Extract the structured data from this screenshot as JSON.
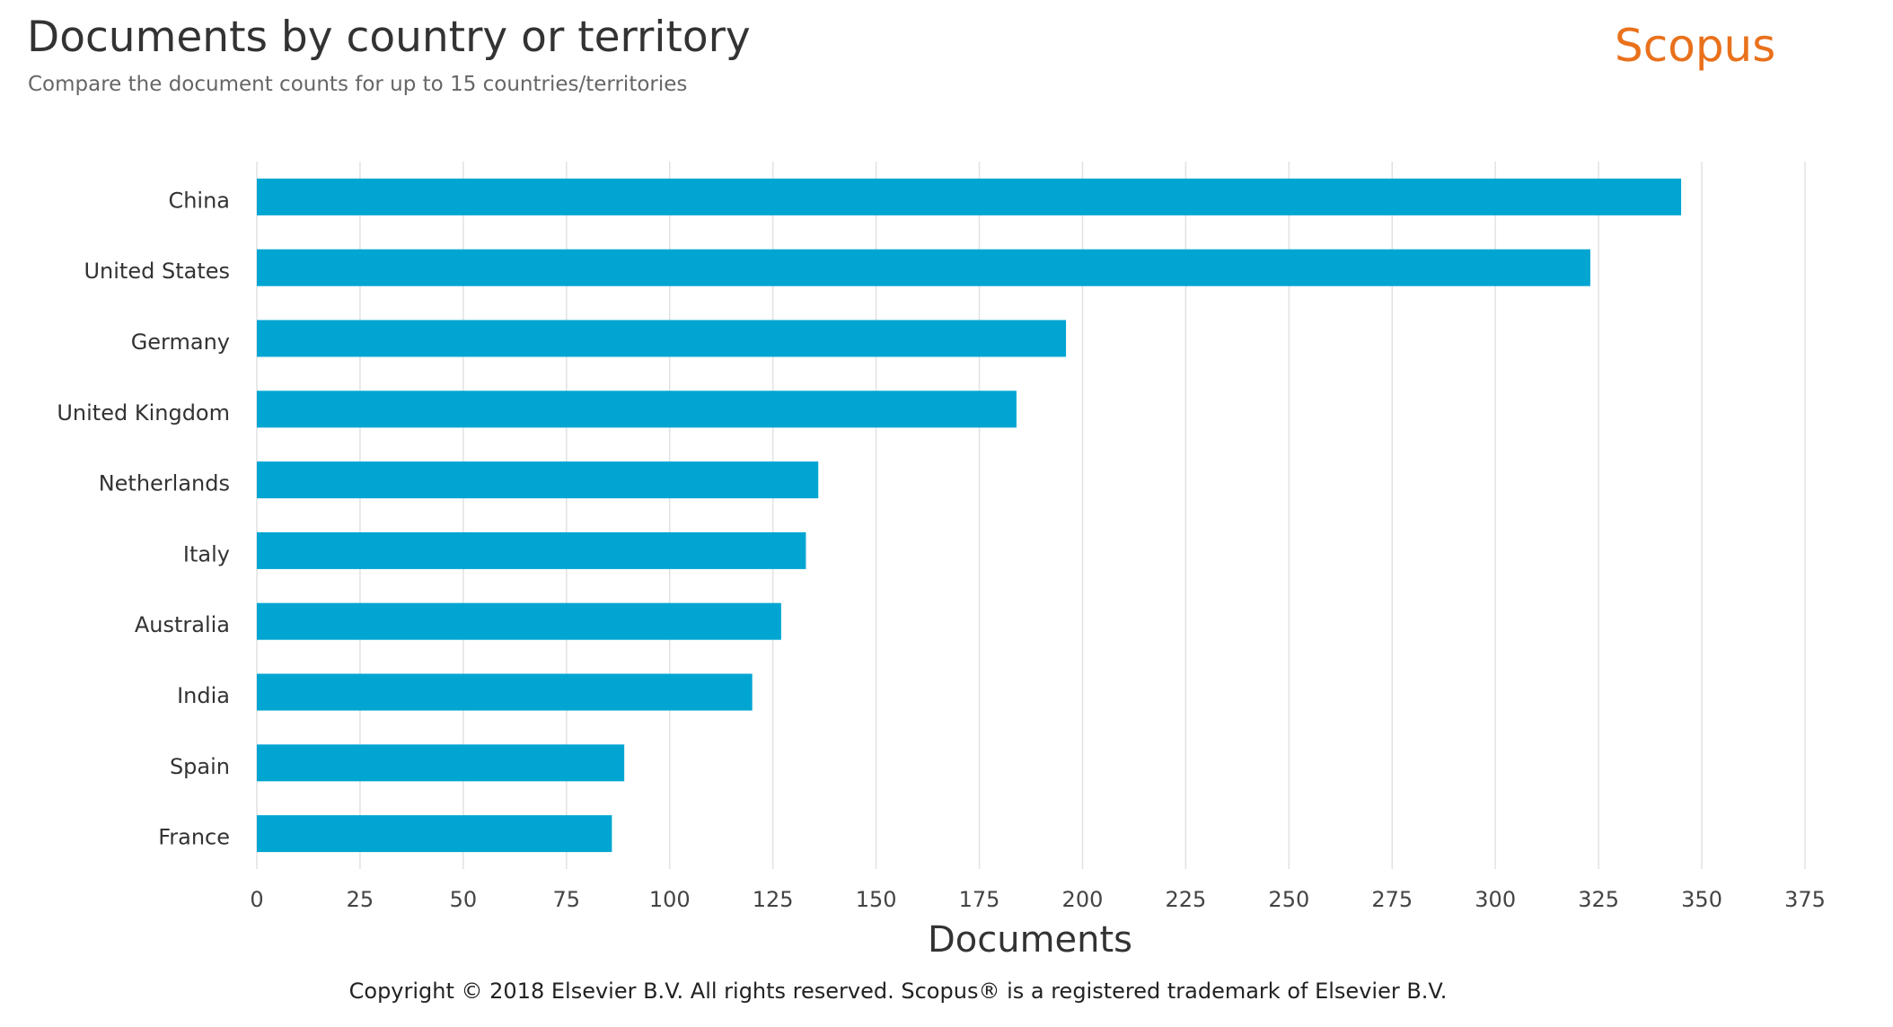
{
  "header": {
    "title": "Documents by country or territory",
    "subtitle": "Compare the document counts for up to 15 countries/territories",
    "logo": "Scopus"
  },
  "footer": {
    "copyright": "Copyright © 2018 Elsevier B.V. All rights reserved. Scopus® is a registered trademark of Elsevier B.V."
  },
  "colors": {
    "bar": "#00a5d2",
    "grid": "#e2e2e2"
  },
  "chart_data": {
    "type": "bar",
    "orientation": "horizontal",
    "title": "Documents by country or territory",
    "xlabel": "Documents",
    "ylabel": "",
    "categories": [
      "China",
      "United States",
      "Germany",
      "United Kingdom",
      "Netherlands",
      "Italy",
      "Australia",
      "India",
      "Spain",
      "France"
    ],
    "values": [
      345,
      323,
      196,
      184,
      136,
      133,
      127,
      120,
      89,
      86
    ],
    "xlim": [
      0,
      375
    ],
    "xticks": [
      0,
      25,
      50,
      75,
      100,
      125,
      150,
      175,
      200,
      225,
      250,
      275,
      300,
      325,
      350,
      375
    ],
    "grid": true
  }
}
